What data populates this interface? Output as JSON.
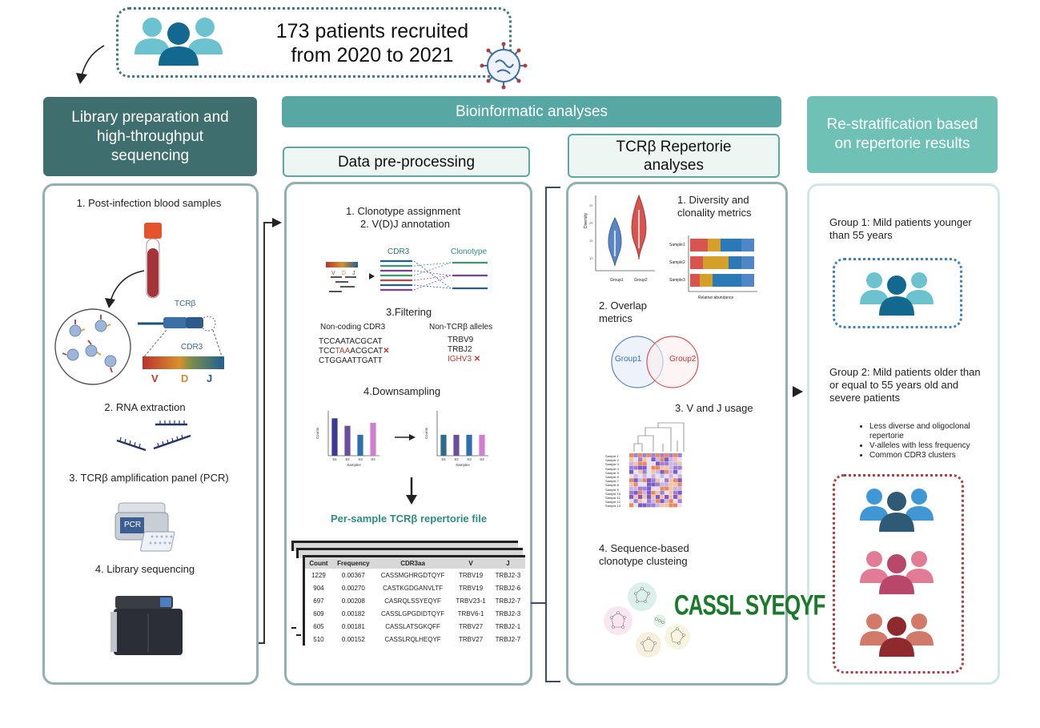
{
  "top": {
    "title_line1": "173 patients recruited",
    "title_line2": "from 2020 to 2021"
  },
  "headers": {
    "library": "Library preparation and high-throughput sequencing",
    "bioinformatic": "Bioinformatic analyses",
    "restratification": "Re-stratification based on repertorie results",
    "preprocessing": "Data pre-processing",
    "repertoire": "TCRβ Repertorie analyses"
  },
  "library": {
    "step1": "1.  Post-infection blood samples",
    "tcrb_label": "TCRβ",
    "cdr3_label": "CDR3",
    "v": "V",
    "d": "D",
    "j": "J",
    "step2": "2. RNA extraction",
    "step3": "3. TCRβ amplification panel (PCR)",
    "pcr_label": "PCR",
    "step4": "4. Library sequencing"
  },
  "preprocessing": {
    "step1": "1.  Clonotype assignment",
    "step2": "2.  V(D)J annotation",
    "cdr3": "CDR3",
    "clonotype": "Clonotype",
    "vdj": [
      "V",
      "D",
      "J"
    ],
    "filtering": "3.Filtering",
    "noncoding_title": "Non-coding CDR3",
    "noncoding_seqs": [
      "TCCAATACGCAT",
      "CTGGAATTGATT"
    ],
    "bad_seq_prefix": "TCC",
    "bad_seq_stop": "TAA",
    "bad_seq_suffix": "ACGCAT",
    "nontcrb_title": "Non-TCRβ alleles",
    "alleles": [
      "TRBV9",
      "TRBJ2"
    ],
    "bad_allele": "IGHV3",
    "downsampling": "4.Downsampling",
    "chart_ylabel": "Counts",
    "chart_xlabel": "Samples",
    "output_file": "Per-sample TCRβ repertorie file",
    "table_headers": [
      "Count",
      "Frequency",
      "CDR3aa",
      "V",
      "J"
    ],
    "table_rows": [
      [
        "1229",
        "0.00367",
        "CASSMGHRGDTQYF",
        "TRBV19",
        "TRBJ2-3"
      ],
      [
        "904",
        "0.00270",
        "CASTKGDGANVLTF",
        "TRBV19",
        "TRBJ2-6"
      ],
      [
        "697",
        "0.00208",
        "CASRQLSSYEQYF",
        "TRBV23-1",
        "TRBJ2-7"
      ],
      [
        "609",
        "0.00182",
        "CASSLGPGDIDTQYF",
        "TRBV6-1",
        "TRBJ2-3"
      ],
      [
        "605",
        "0.00181",
        "CASSLATSGKQFF",
        "TRBV27",
        "TRBJ2-1"
      ],
      [
        "510",
        "0.00152",
        "CASSLRQLHEQYF",
        "TRBV27",
        "TRBJ2-7"
      ]
    ]
  },
  "repertoire": {
    "diversity": "1.  Diversity and clonality metrics",
    "violin_ylabel": "Diversity",
    "violin_groups": [
      "Group1",
      "Group2"
    ],
    "bar_samples": [
      "Sample1",
      "Sample2",
      "Sample3"
    ],
    "bar_xlabel": "Relative abundance",
    "overlap": "2. Overlap metrics",
    "venn_left": "Group1",
    "venn_right": "Group2",
    "vj_usage": "3. V and J usage",
    "heatmap_rows": [
      "Sample 1",
      "Sample 2",
      "Sample 3",
      "Sample 4",
      "Sample 5",
      "Sample 6",
      "Sample 7",
      "Sample 8",
      "Sample 9",
      "Sample 10",
      "Sample 11",
      "Sample 12",
      "Sample 13"
    ],
    "clustering": "4. Sequence-based clonotype clusteing",
    "logo": "CASSL SYEQYF"
  },
  "restrat": {
    "group1": "Group 1: Mild patients younger than 55 years",
    "group2": "Group 2: Mild patients older than or equal to 55 years old and severe patients",
    "bullets": [
      "Less diverse and oligoclonal repertorie",
      "V-alleles with less frequency",
      "Common CDR3 clusters"
    ]
  },
  "chart_data": [
    {
      "type": "bar",
      "categories": [
        "S1",
        "S2",
        "S3",
        "S4"
      ],
      "values": [
        1.25,
        1.0,
        0.7,
        1.1
      ],
      "colors": [
        "#3b3a8f",
        "#6b4e9c",
        "#2f6fb0",
        "#d07fd0"
      ]
    },
    {
      "type": "bar",
      "categories": [
        "S1",
        "S2",
        "S3",
        "S4"
      ],
      "values": [
        0.7,
        0.7,
        0.7,
        0.7
      ],
      "colors": [
        "#2a6d8d",
        "#6b4e9c",
        "#2f6fb0",
        "#d07fd0"
      ]
    }
  ],
  "colors": {
    "header_dark": "#3e6f6e",
    "header_mid": "#57a7a5",
    "header_light": "#6fc1b6",
    "blue_dot": "#3d83c4",
    "red_dot": "#b33b42",
    "people_teal": "#5ebcca",
    "people_dark": "#13688f"
  }
}
